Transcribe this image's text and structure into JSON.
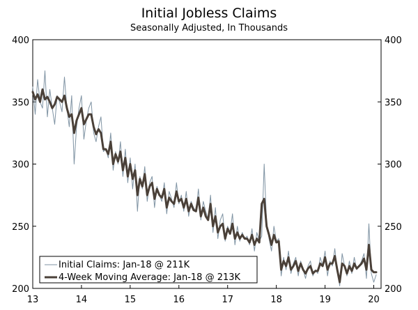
{
  "chart_data": {
    "type": "line",
    "title": "Initial Jobless Claims",
    "subtitle": "Seasonally Adjusted, In Thousands",
    "xlabel": "",
    "ylabel": "",
    "xlim": [
      13,
      20.15
    ],
    "ylim": [
      200,
      400
    ],
    "x_ticks": [
      "13",
      "14",
      "15",
      "16",
      "17",
      "18",
      "19",
      "20"
    ],
    "y_ticks": [
      "200",
      "250",
      "300",
      "350",
      "400"
    ],
    "grid": false,
    "legend_position": "bottom-left",
    "colors": {
      "weekly": "#7f93a3",
      "average": "#4a4038",
      "axis": "#000000"
    },
    "series": [
      {
        "name": "Initial Claims: Jan-18 @ 211K",
        "x": [
          13.0,
          13.05,
          13.1,
          13.15,
          13.2,
          13.25,
          13.3,
          13.35,
          13.4,
          13.45,
          13.5,
          13.55,
          13.6,
          13.65,
          13.7,
          13.75,
          13.8,
          13.85,
          13.9,
          13.95,
          14.0,
          14.05,
          14.1,
          14.15,
          14.2,
          14.25,
          14.3,
          14.35,
          14.4,
          14.45,
          14.5,
          14.55,
          14.6,
          14.65,
          14.7,
          14.75,
          14.8,
          14.85,
          14.9,
          14.95,
          15.0,
          15.05,
          15.1,
          15.15,
          15.2,
          15.25,
          15.3,
          15.35,
          15.4,
          15.45,
          15.5,
          15.55,
          15.6,
          15.65,
          15.7,
          15.75,
          15.8,
          15.85,
          15.9,
          15.95,
          16.0,
          16.05,
          16.1,
          16.15,
          16.2,
          16.25,
          16.3,
          16.35,
          16.4,
          16.45,
          16.5,
          16.55,
          16.6,
          16.65,
          16.7,
          16.75,
          16.8,
          16.85,
          16.9,
          16.95,
          17.0,
          17.05,
          17.1,
          17.15,
          17.2,
          17.25,
          17.3,
          17.35,
          17.4,
          17.45,
          17.5,
          17.55,
          17.6,
          17.65,
          17.7,
          17.75,
          17.8,
          17.85,
          17.9,
          17.95,
          18.0,
          18.05,
          18.1,
          18.15,
          18.2,
          18.25,
          18.3,
          18.35,
          18.4,
          18.45,
          18.5,
          18.55,
          18.6,
          18.65,
          18.7,
          18.75,
          18.8,
          18.85,
          18.9,
          18.95,
          19.0,
          19.05,
          19.1,
          19.15,
          19.2,
          19.25,
          19.3,
          19.35,
          19.4,
          19.45,
          19.5,
          19.55,
          19.6,
          19.65,
          19.7,
          19.75,
          19.8,
          19.85,
          19.9,
          19.95,
          20.0,
          20.05
        ],
        "values": [
          362,
          340,
          368,
          350,
          345,
          375,
          338,
          360,
          345,
          332,
          355,
          350,
          342,
          370,
          345,
          330,
          355,
          300,
          330,
          345,
          355,
          320,
          335,
          345,
          350,
          325,
          318,
          330,
          338,
          310,
          312,
          305,
          325,
          295,
          310,
          300,
          318,
          290,
          312,
          285,
          305,
          280,
          300,
          262,
          290,
          280,
          298,
          270,
          285,
          290,
          265,
          282,
          275,
          270,
          285,
          260,
          278,
          272,
          265,
          285,
          268,
          275,
          262,
          278,
          258,
          270,
          265,
          262,
          280,
          255,
          270,
          262,
          255,
          275,
          245,
          265,
          240,
          255,
          260,
          238,
          250,
          245,
          260,
          235,
          250,
          238,
          245,
          240,
          242,
          235,
          248,
          230,
          245,
          238,
          242,
          300,
          252,
          240,
          230,
          250,
          238,
          240,
          210,
          225,
          215,
          230,
          212,
          220,
          225,
          210,
          222,
          215,
          208,
          218,
          222,
          210,
          215,
          212,
          225,
          218,
          230,
          210,
          222,
          218,
          232,
          215,
          202,
          228,
          218,
          210,
          222,
          212,
          225,
          215,
          218,
          222,
          228,
          208,
          252,
          212,
          205,
          211
        ]
      },
      {
        "name": "4-Week Moving Average: Jan-18 @ 213K",
        "x": [
          13.0,
          13.05,
          13.1,
          13.15,
          13.2,
          13.25,
          13.3,
          13.35,
          13.4,
          13.45,
          13.5,
          13.55,
          13.6,
          13.65,
          13.7,
          13.75,
          13.8,
          13.85,
          13.9,
          13.95,
          14.0,
          14.05,
          14.1,
          14.15,
          14.2,
          14.25,
          14.3,
          14.35,
          14.4,
          14.45,
          14.5,
          14.55,
          14.6,
          14.65,
          14.7,
          14.75,
          14.8,
          14.85,
          14.9,
          14.95,
          15.0,
          15.05,
          15.1,
          15.15,
          15.2,
          15.25,
          15.3,
          15.35,
          15.4,
          15.45,
          15.5,
          15.55,
          15.6,
          15.65,
          15.7,
          15.75,
          15.8,
          15.85,
          15.9,
          15.95,
          16.0,
          16.05,
          16.1,
          16.15,
          16.2,
          16.25,
          16.3,
          16.35,
          16.4,
          16.45,
          16.5,
          16.55,
          16.6,
          16.65,
          16.7,
          16.75,
          16.8,
          16.85,
          16.9,
          16.95,
          17.0,
          17.05,
          17.1,
          17.15,
          17.2,
          17.25,
          17.3,
          17.35,
          17.4,
          17.45,
          17.5,
          17.55,
          17.6,
          17.65,
          17.7,
          17.75,
          17.8,
          17.85,
          17.9,
          17.95,
          18.0,
          18.05,
          18.1,
          18.15,
          18.2,
          18.25,
          18.3,
          18.35,
          18.4,
          18.45,
          18.5,
          18.55,
          18.6,
          18.65,
          18.7,
          18.75,
          18.8,
          18.85,
          18.9,
          18.95,
          19.0,
          19.05,
          19.1,
          19.15,
          19.2,
          19.25,
          19.3,
          19.35,
          19.4,
          19.45,
          19.5,
          19.55,
          19.6,
          19.65,
          19.7,
          19.75,
          19.8,
          19.85,
          19.9,
          19.95,
          20.0,
          20.05
        ],
        "values": [
          358,
          352,
          356,
          350,
          360,
          352,
          354,
          350,
          345,
          348,
          354,
          352,
          350,
          355,
          345,
          338,
          340,
          325,
          335,
          340,
          345,
          332,
          336,
          340,
          340,
          330,
          324,
          328,
          325,
          312,
          312,
          308,
          318,
          300,
          308,
          302,
          310,
          295,
          305,
          290,
          300,
          288,
          295,
          275,
          288,
          282,
          292,
          275,
          282,
          285,
          272,
          280,
          275,
          273,
          280,
          265,
          273,
          270,
          268,
          278,
          270,
          272,
          265,
          272,
          262,
          268,
          263,
          262,
          273,
          258,
          265,
          258,
          255,
          268,
          250,
          258,
          245,
          250,
          252,
          240,
          248,
          244,
          252,
          240,
          245,
          240,
          243,
          240,
          240,
          237,
          243,
          235,
          240,
          237,
          268,
          272,
          250,
          243,
          235,
          243,
          237,
          238,
          215,
          222,
          218,
          225,
          215,
          218,
          222,
          214,
          220,
          215,
          212,
          216,
          218,
          212,
          214,
          214,
          220,
          218,
          225,
          215,
          220,
          220,
          226,
          215,
          205,
          220,
          218,
          212,
          218,
          214,
          220,
          216,
          218,
          220,
          224,
          215,
          235,
          215,
          213,
          213
        ]
      }
    ]
  }
}
